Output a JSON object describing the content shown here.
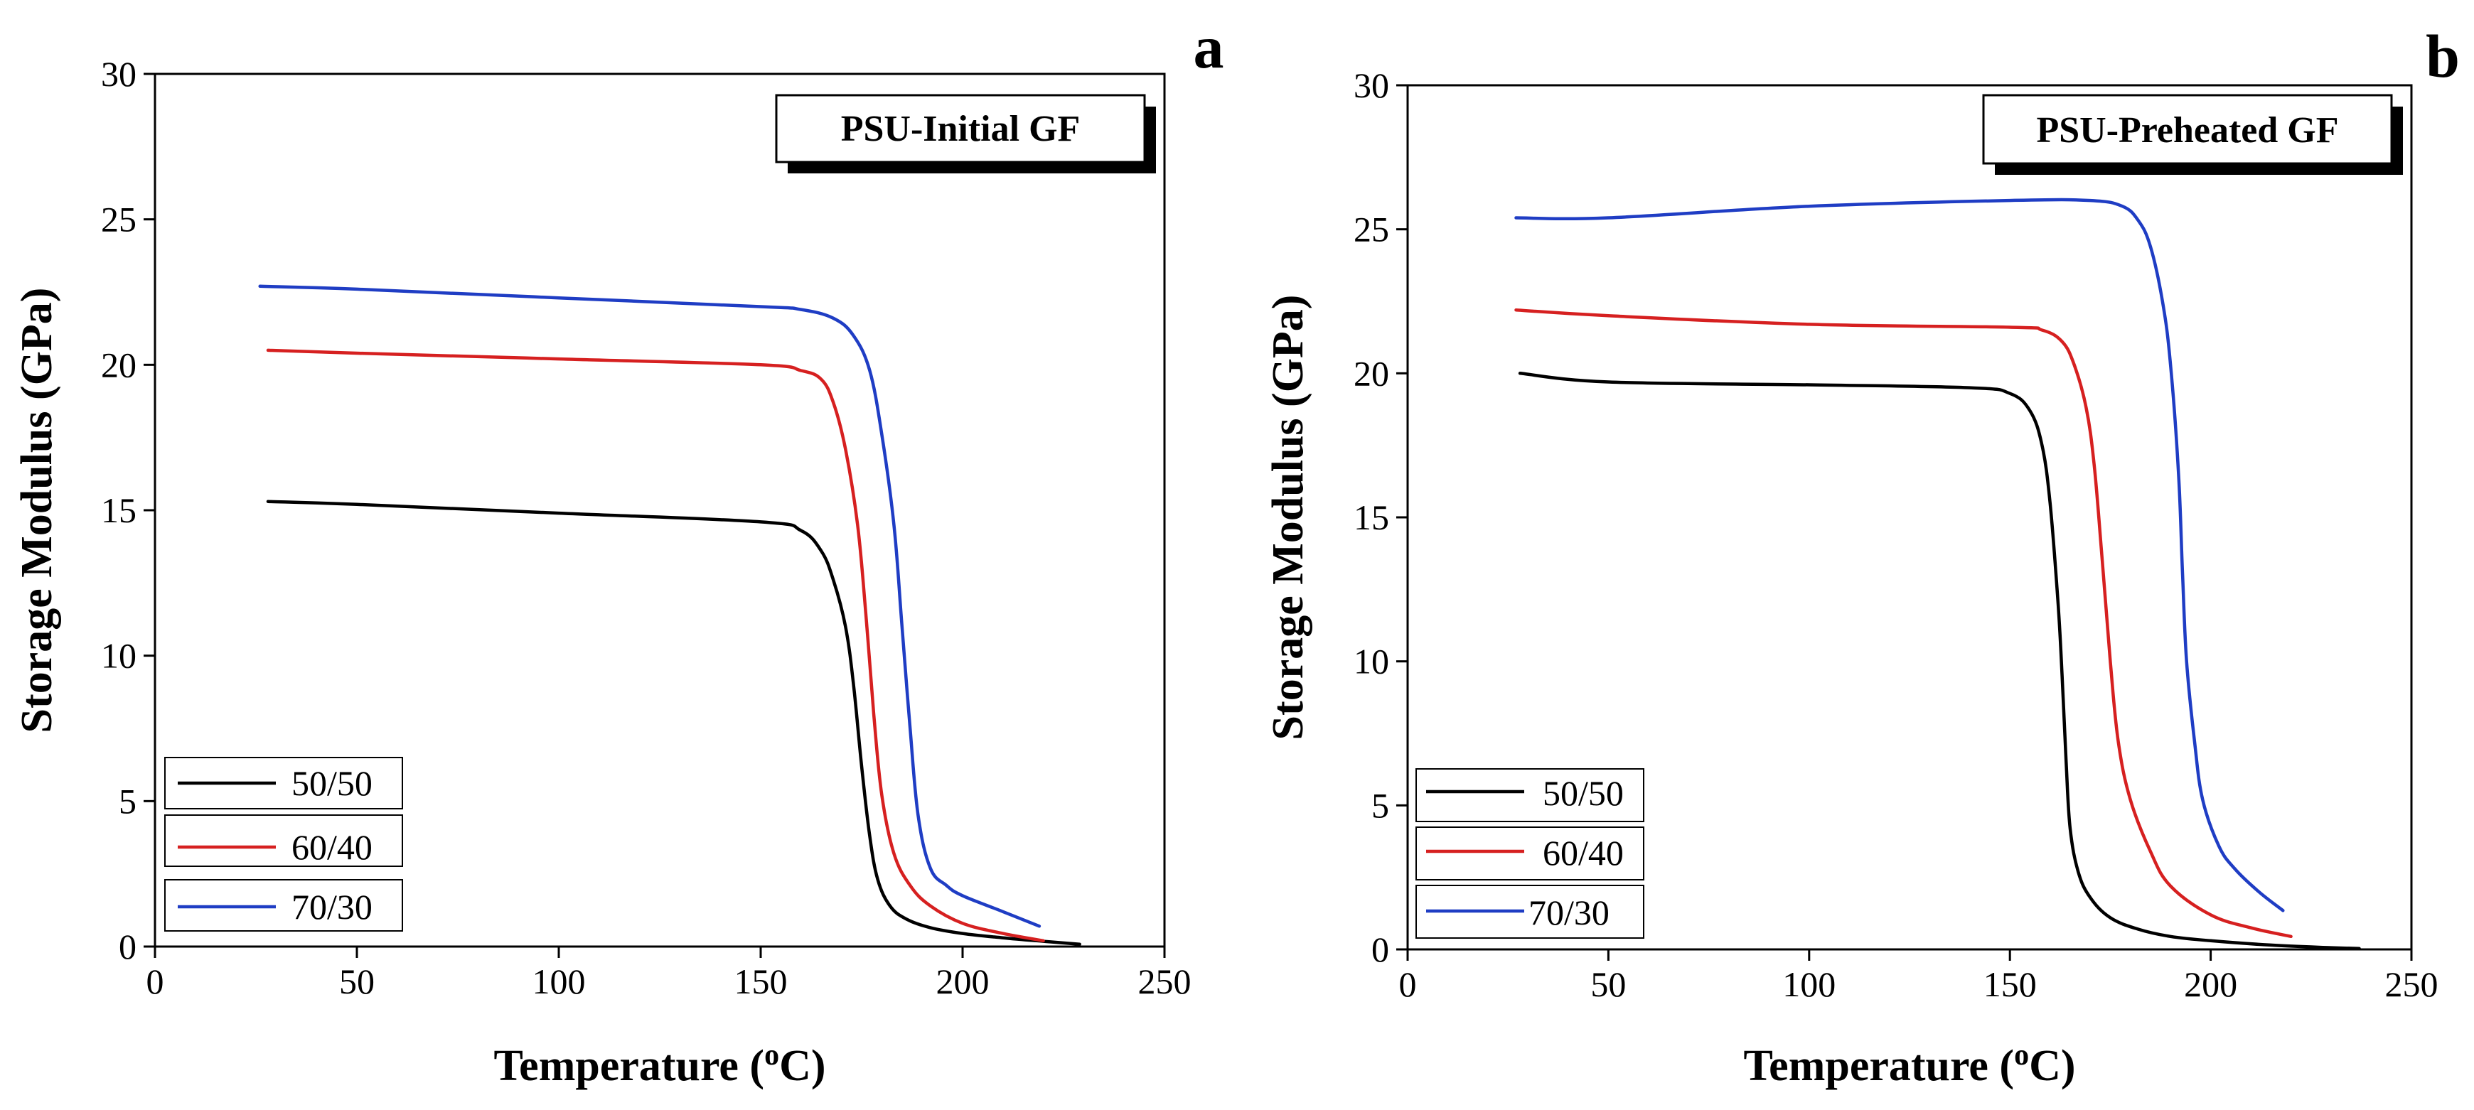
{
  "chart_data": [
    {
      "type": "line",
      "panel_letter": "a",
      "badge": "PSU-Initial GF",
      "xlabel": "Temperature (",
      "xlabel_sup": "o",
      "xlabel_tail": "C)",
      "ylabel": "Storage Modulus (GPa)",
      "xlim": [
        0,
        250
      ],
      "ylim": [
        0,
        30
      ],
      "xticks": [
        0,
        50,
        100,
        150,
        200,
        250
      ],
      "yticks": [
        0,
        5,
        10,
        15,
        20,
        25,
        30
      ],
      "grid": false,
      "legend_position": "bottom-left",
      "series": [
        {
          "name": "50/50",
          "color": "#000000",
          "x": [
            28,
            50,
            100,
            150,
            160,
            165,
            168,
            171,
            173,
            175,
            177,
            179,
            182,
            186,
            192,
            200,
            210,
            220,
            229
          ],
          "y": [
            15.3,
            15.2,
            14.9,
            14.6,
            14.3,
            13.6,
            12.6,
            11.0,
            9.0,
            6.2,
            3.8,
            2.3,
            1.4,
            0.95,
            0.65,
            0.45,
            0.3,
            0.18,
            0.08
          ]
        },
        {
          "name": "60/40",
          "color": "#d62020",
          "x": [
            28,
            50,
            100,
            150,
            160,
            165,
            168,
            171,
            174,
            176,
            178,
            180,
            183,
            187,
            192,
            200,
            210,
            220
          ],
          "y": [
            20.5,
            20.4,
            20.2,
            20.0,
            19.8,
            19.5,
            18.7,
            17.1,
            14.5,
            11.5,
            8.0,
            5.2,
            3.2,
            2.1,
            1.4,
            0.8,
            0.45,
            0.2
          ]
        },
        {
          "name": "70/30",
          "color": "#1f3dc4",
          "x": [
            26,
            50,
            100,
            150,
            160,
            168,
            173,
            177,
            180,
            183,
            185,
            187,
            189,
            192,
            196,
            200,
            210,
            219
          ],
          "y": [
            22.7,
            22.6,
            22.3,
            22.0,
            21.9,
            21.6,
            21.0,
            19.8,
            17.6,
            14.5,
            11.0,
            7.5,
            4.5,
            2.7,
            2.1,
            1.75,
            1.2,
            0.7
          ]
        }
      ]
    },
    {
      "type": "line",
      "panel_letter": "b",
      "badge": "PSU-Preheated GF",
      "xlabel": "Temperature (",
      "xlabel_sup": "o",
      "xlabel_tail": "C)",
      "ylabel": "Storage Modulus (GPa)",
      "xlim": [
        0,
        250
      ],
      "ylim": [
        0,
        30
      ],
      "xticks": [
        0,
        50,
        100,
        150,
        200,
        250
      ],
      "yticks": [
        0,
        5,
        10,
        15,
        20,
        25,
        30
      ],
      "grid": false,
      "legend_position": "bottom-left",
      "series": [
        {
          "name": "50/50",
          "color": "#000000",
          "x": [
            28,
            50,
            100,
            140,
            150,
            155,
            158,
            160,
            162,
            163,
            164,
            165,
            167,
            170,
            175,
            182,
            190,
            200,
            215,
            230,
            237
          ],
          "y": [
            20.0,
            19.7,
            19.6,
            19.5,
            19.3,
            18.7,
            17.5,
            15.5,
            12.0,
            9.5,
            6.5,
            4.2,
            2.7,
            1.8,
            1.1,
            0.7,
            0.45,
            0.3,
            0.15,
            0.06,
            0.03
          ]
        },
        {
          "name": "60/40",
          "color": "#d62020",
          "x": [
            27,
            50,
            100,
            150,
            158,
            163,
            166,
            169,
            171,
            173,
            175,
            177,
            180,
            185,
            190,
            200,
            210,
            220
          ],
          "y": [
            22.2,
            22.0,
            21.7,
            21.6,
            21.5,
            21.1,
            20.3,
            18.8,
            16.8,
            13.5,
            10.0,
            7.2,
            5.2,
            3.4,
            2.2,
            1.2,
            0.75,
            0.45
          ]
        },
        {
          "name": "70/30",
          "color": "#1f3dc4",
          "x": [
            27,
            50,
            100,
            150,
            170,
            178,
            182,
            185,
            188,
            190,
            192,
            193,
            194,
            196,
            198,
            202,
            206,
            212,
            218
          ],
          "y": [
            25.4,
            25.4,
            25.8,
            26.0,
            26.0,
            25.8,
            25.3,
            24.4,
            22.5,
            20.3,
            16.5,
            13.0,
            10.0,
            7.2,
            5.2,
            3.6,
            2.8,
            2.0,
            1.35
          ]
        }
      ]
    }
  ]
}
